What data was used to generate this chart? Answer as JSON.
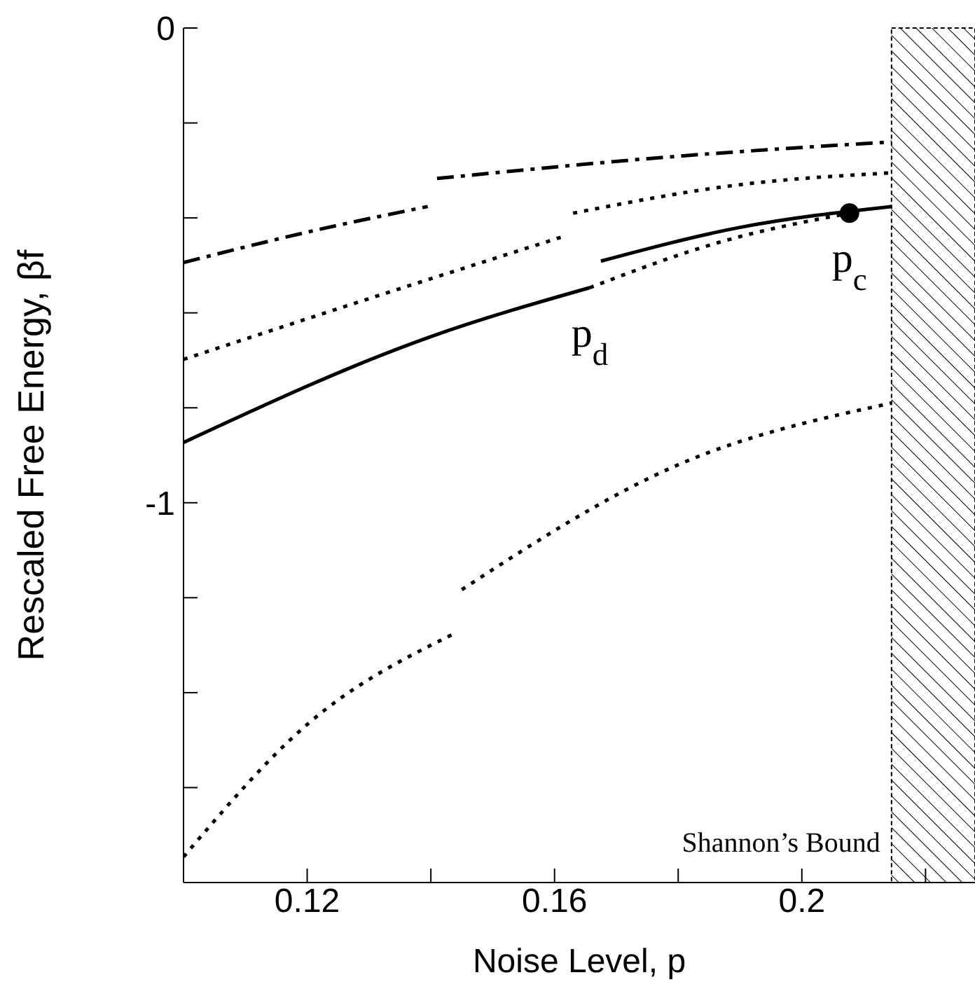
{
  "chart_data": {
    "type": "line",
    "xlabel": "Noise Level, p",
    "ylabel": "Rescaled Free Energy, βf",
    "xlim": [
      0.1,
      0.228
    ],
    "xticks": [
      {
        "value": 0.1,
        "label": null
      },
      0.12,
      {
        "value": 0.14,
        "label": null
      },
      0.16,
      {
        "value": 0.18,
        "label": null
      },
      0.2,
      {
        "value": 0.22,
        "label": null
      }
    ],
    "ylim": [
      -1.8,
      0
    ],
    "yticks": [
      0,
      {
        "value": -0.2,
        "label": null
      },
      {
        "value": -0.4,
        "label": null
      },
      {
        "value": -0.6,
        "label": null
      },
      {
        "value": -0.8,
        "label": null
      },
      -1,
      {
        "value": -1.2,
        "label": null
      },
      {
        "value": -1.4,
        "label": null
      },
      {
        "value": -1.6,
        "label": null
      },
      {
        "value": -1.8,
        "label": null
      }
    ],
    "grid": false,
    "marker": "none",
    "series": [
      {
        "color": "#000000",
        "line_style": "dashed",
        "x": [
          0.1,
          0.12,
          0.1395
        ],
        "values": [
          -0.494,
          -0.43,
          -0.376
        ]
      },
      {
        "color": "#000000",
        "line_style": "dashed",
        "x": [
          0.141,
          0.18,
          0.2145
        ],
        "values": [
          -0.317,
          -0.27,
          -0.24
        ]
      },
      {
        "color": "#000000",
        "line_style": "dotted",
        "x": [
          0.1,
          0.13,
          0.161
        ],
        "values": [
          -0.698,
          -0.57,
          -0.441
        ]
      },
      {
        "color": "#000000",
        "line_style": "dotted",
        "x": [
          0.163,
          0.19,
          0.2145
        ],
        "values": [
          -0.39,
          -0.33,
          -0.305
        ]
      },
      {
        "color": "#000000",
        "line_style": "solid",
        "x": [
          0.1,
          0.14,
          0.1657
        ],
        "values": [
          -0.873,
          -0.65,
          -0.547
        ]
      },
      {
        "color": "#000000",
        "line_style": "solid",
        "x": [
          0.1675,
          0.19,
          0.2145
        ],
        "values": [
          -0.491,
          -0.42,
          -0.376
        ]
      },
      {
        "color": "#000000",
        "line_style": "dotted",
        "x": [
          0.1657,
          0.187,
          0.2077
        ],
        "values": [
          -0.547,
          -0.45,
          -0.39
        ]
      },
      {
        "color": "#000000",
        "line_style": "dotted",
        "x": [
          0.1,
          0.12,
          0.1434
        ],
        "values": [
          -1.746,
          -1.467,
          -1.278
        ]
      },
      {
        "color": "#000000",
        "line_style": "dotted",
        "x": [
          0.145,
          0.18,
          0.2145
        ],
        "values": [
          -1.183,
          -0.92,
          -0.79
        ]
      },
      {
        "type": "scatter",
        "color": "#000000",
        "marker": "circle",
        "x": [
          0.2077
        ],
        "values": [
          -0.39
        ]
      }
    ],
    "bands": [
      {
        "axis": "x",
        "from": 0.2145,
        "to": 0.228,
        "label": "Shannon’s Bound",
        "color": "#000000"
      }
    ],
    "annotations": [
      {
        "text": "p$_{d}$",
        "x": 0.1657,
        "y": -0.547
      },
      {
        "text": "p$_{c}$",
        "x": 0.2077,
        "y": -0.39
      }
    ]
  }
}
